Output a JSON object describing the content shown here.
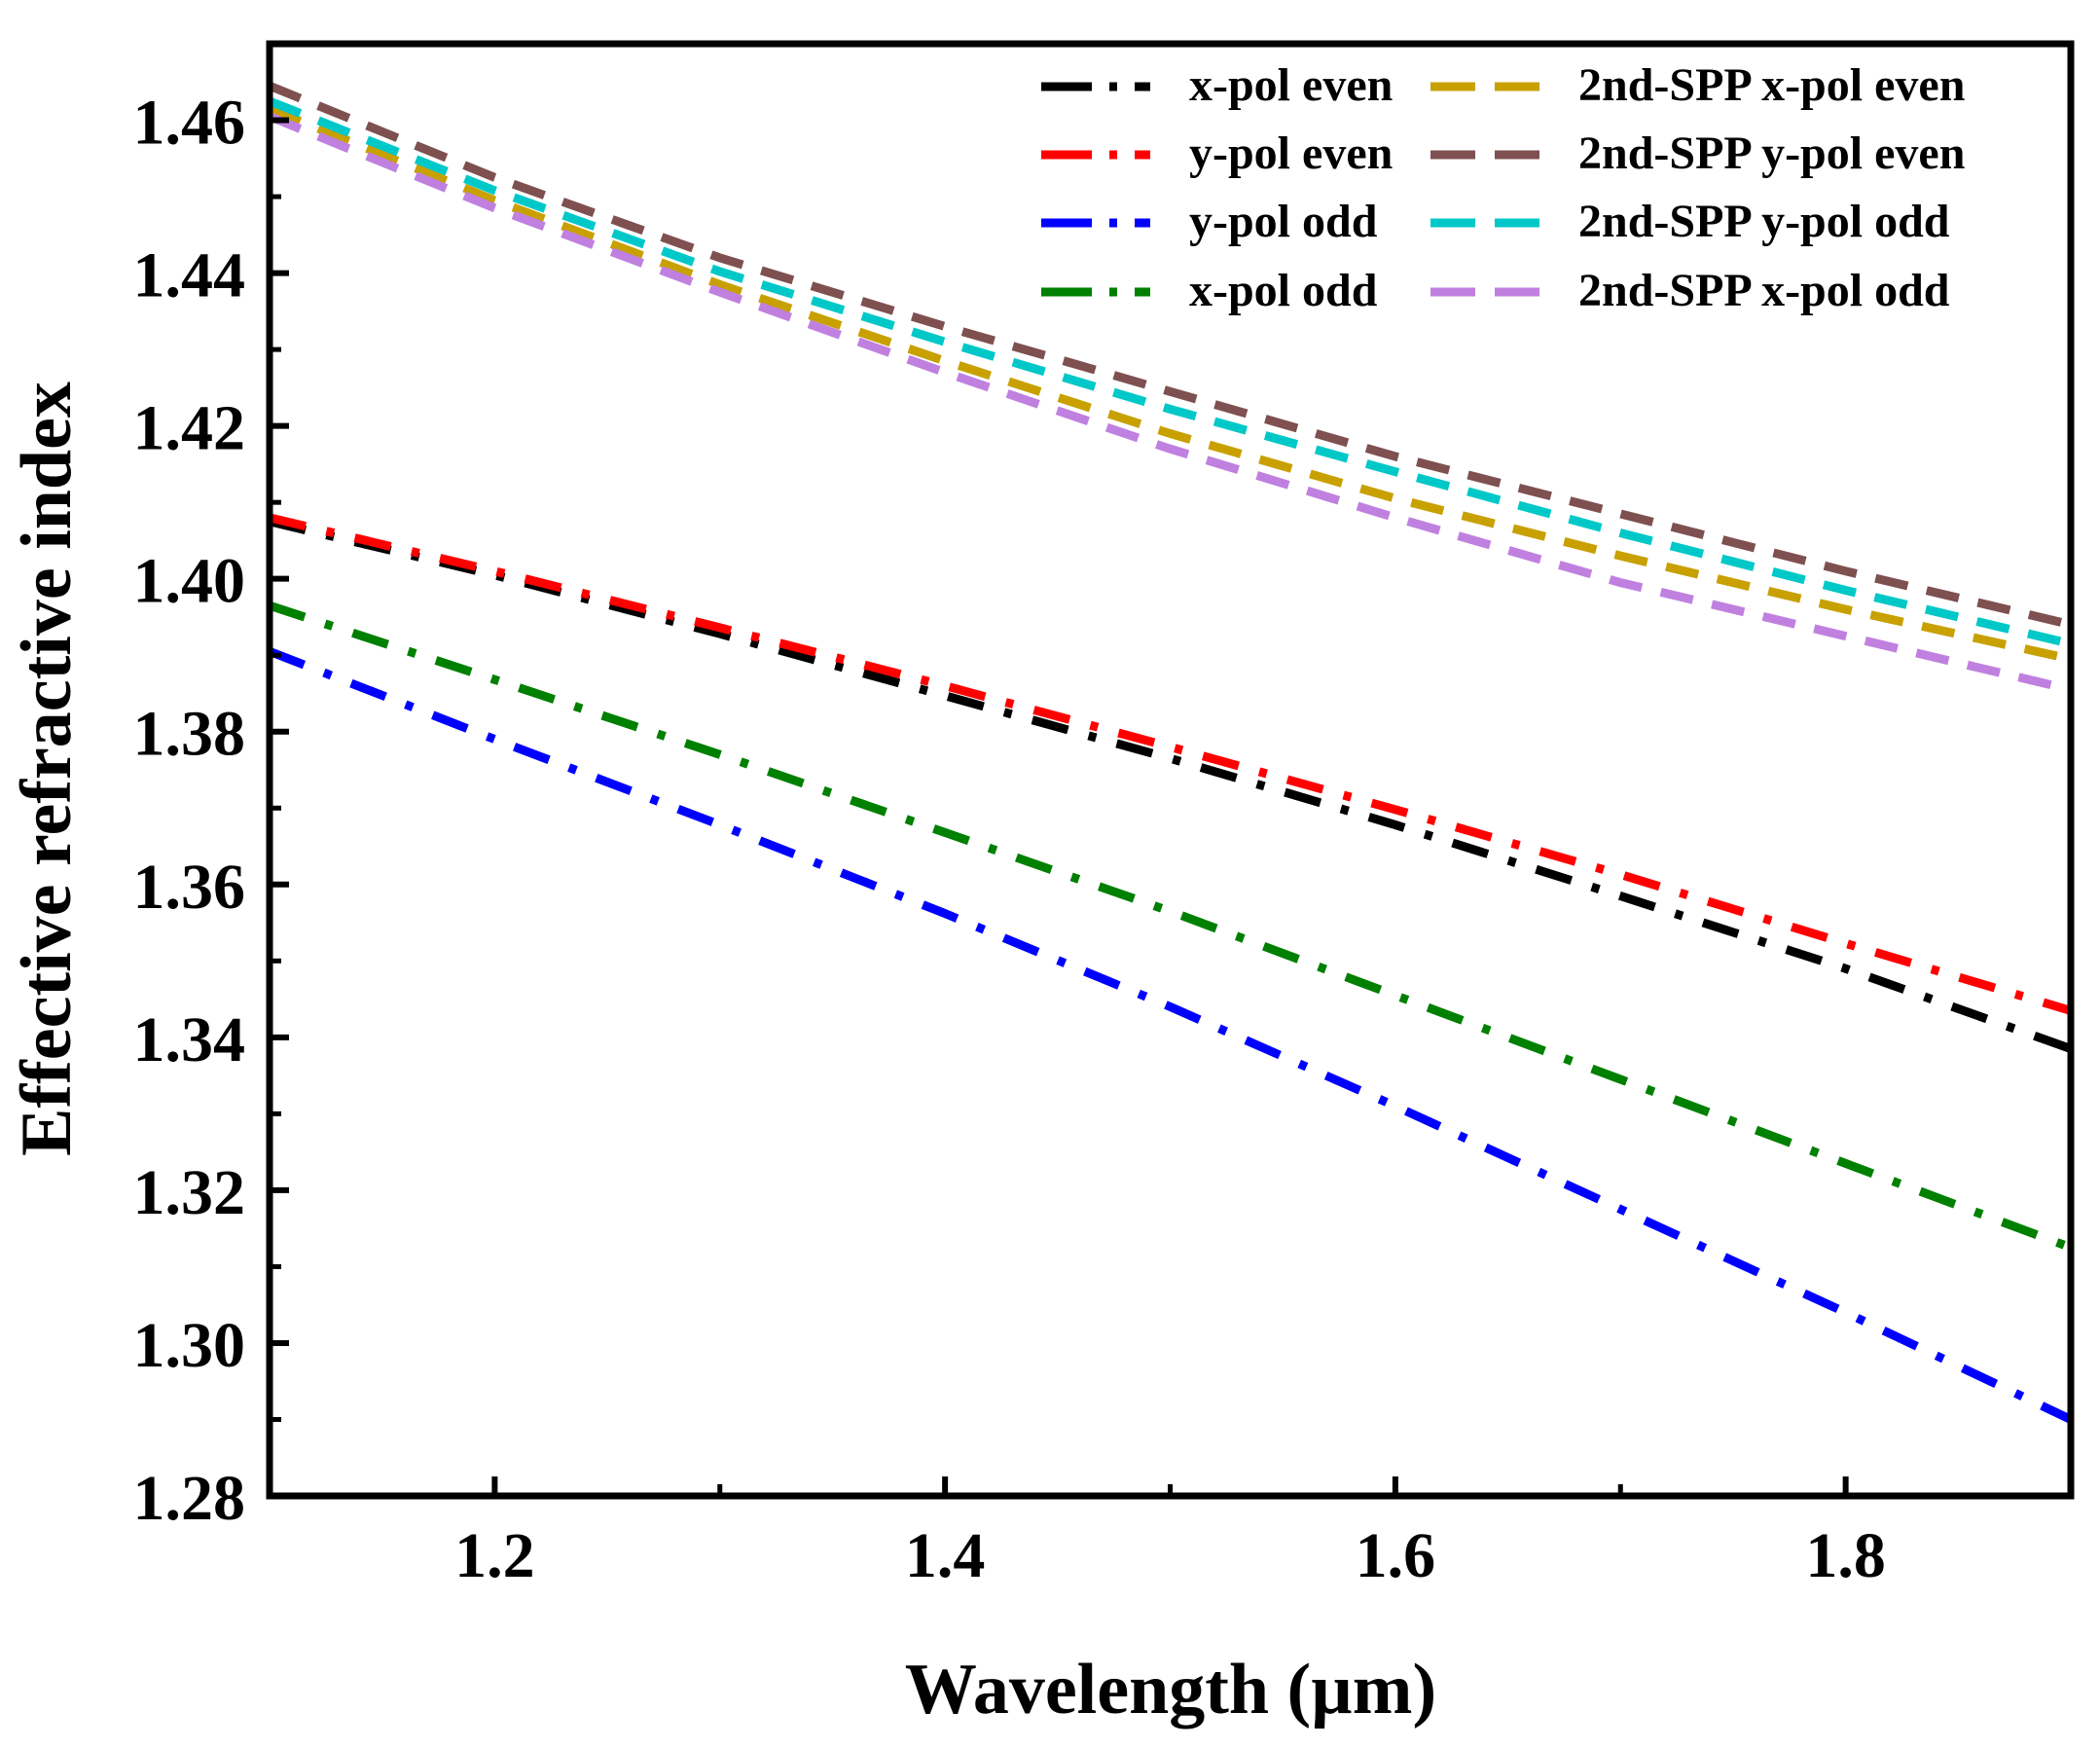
{
  "chart_data": {
    "type": "line",
    "title": "",
    "xlabel": "Wavelength (µm)",
    "ylabel": "Effective refractive index",
    "xlim": [
      1.1,
      1.9
    ],
    "ylim": [
      1.28,
      1.47
    ],
    "x_ticks": [
      1.2,
      1.4,
      1.6,
      1.8
    ],
    "x_tick_labels": [
      "1.2",
      "1.4",
      "1.6",
      "1.8"
    ],
    "y_ticks": [
      1.28,
      1.3,
      1.32,
      1.34,
      1.36,
      1.38,
      1.4,
      1.42,
      1.44,
      1.46
    ],
    "y_tick_labels": [
      "1.28",
      "1.30",
      "1.32",
      "1.34",
      "1.36",
      "1.38",
      "1.40",
      "1.42",
      "1.44",
      "1.46"
    ],
    "grid": false,
    "legend_position": "top-right",
    "x": [
      1.1,
      1.2,
      1.3,
      1.4,
      1.5,
      1.6,
      1.7,
      1.8,
      1.9
    ],
    "series": [
      {
        "name": "x-pol even",
        "color": "#000000",
        "style": "dashdot",
        "values": [
          1.4075,
          1.4005,
          1.3928,
          1.3847,
          1.3765,
          1.3678,
          1.3585,
          1.349,
          1.3385
        ]
      },
      {
        "name": "y-pol even",
        "color": "#ff0000",
        "style": "dashdot",
        "values": [
          1.408,
          1.401,
          1.3936,
          1.386,
          1.378,
          1.3698,
          1.3613,
          1.3523,
          1.3435
        ]
      },
      {
        "name": "y-pol odd",
        "color": "#0000ff",
        "style": "dashdot",
        "values": [
          1.3905,
          1.379,
          1.3678,
          1.3562,
          1.344,
          1.331,
          1.3175,
          1.304,
          1.29
        ]
      },
      {
        "name": "x-pol odd",
        "color": "#008000",
        "style": "dashdot",
        "values": [
          1.3965,
          1.3868,
          1.377,
          1.3668,
          1.3565,
          1.3455,
          1.3345,
          1.3235,
          1.3125
        ]
      },
      {
        "name": "2nd-SPP x-pol even",
        "color": "#c8a000",
        "style": "dash",
        "values": [
          1.4615,
          1.4495,
          1.4385,
          1.4285,
          1.419,
          1.4105,
          1.403,
          1.396,
          1.3895
        ]
      },
      {
        "name": "2nd-SPP y-pol even",
        "color": "#7f5050",
        "style": "dash",
        "values": [
          1.4645,
          1.4525,
          1.442,
          1.433,
          1.4245,
          1.416,
          1.4085,
          1.401,
          1.394
        ]
      },
      {
        "name": "2nd-SPP y-pol odd",
        "color": "#00c8c8",
        "style": "dash",
        "values": [
          1.4625,
          1.4508,
          1.4402,
          1.431,
          1.4222,
          1.414,
          1.406,
          1.3985,
          1.3915
        ]
      },
      {
        "name": "2nd-SPP x-pol odd",
        "color": "#c080e0",
        "style": "dash",
        "values": [
          1.4605,
          1.4485,
          1.4375,
          1.427,
          1.417,
          1.408,
          1.3995,
          1.3925,
          1.3855
        ]
      }
    ]
  }
}
